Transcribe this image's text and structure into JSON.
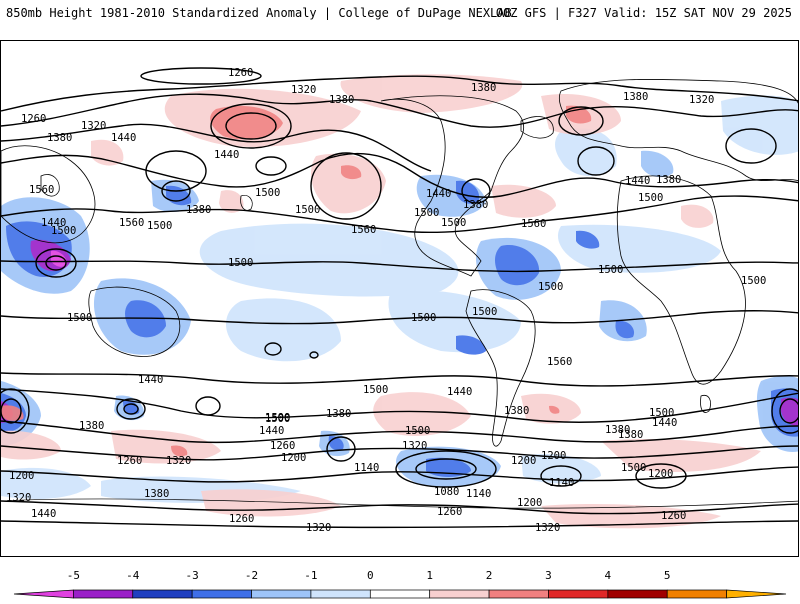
{
  "header": {
    "title_left": "850mb Height 1981-2010 Standardized Anomaly | College of DuPage NEXLAB",
    "title_right": "00Z GFS | F327 Valid: 15Z SAT NOV 29 2025"
  },
  "map": {
    "projection": "global cylindrical, Americas-centered",
    "contour_labels": [
      "1260",
      "1320",
      "1380",
      "1380",
      "1260",
      "1320",
      "1380",
      "1440",
      "1380",
      "1320",
      "1440",
      "1500",
      "1560",
      "1440",
      "1500",
      "1560",
      "1440",
      "1500",
      "1380",
      "1560",
      "1440",
      "1380",
      "1500",
      "1500",
      "1560",
      "1500",
      "1380",
      "1500",
      "1500",
      "1500",
      "1500",
      "1500",
      "1500",
      "1500",
      "1500",
      "1440",
      "1500",
      "1440",
      "1380",
      "1260",
      "1200",
      "1320",
      "1380",
      "1440",
      "1500",
      "1560",
      "1500",
      "1380",
      "1380",
      "1440",
      "1500",
      "1320",
      "1380",
      "1260",
      "1200",
      "1140",
      "1080",
      "1140",
      "1200",
      "1140",
      "1200",
      "1260",
      "1320",
      "1260",
      "1320",
      "1200",
      "1260",
      "1320",
      "1380",
      "1440",
      "1500",
      "1200",
      "1500",
      "1500"
    ]
  },
  "colorbar": {
    "ticks": [
      "-5",
      "-4",
      "-3",
      "-2",
      "-1",
      "0",
      "1",
      "2",
      "3",
      "4",
      "5"
    ],
    "colors": [
      "#e040e0",
      "#9a1fc8",
      "#1f3fc0",
      "#3f6fe8",
      "#9ec4f8",
      "#cfe4fc",
      "#ffffff",
      "#f8d0d0",
      "#f08080",
      "#e02828",
      "#a00000",
      "#f08000",
      "#ffb000"
    ]
  }
}
